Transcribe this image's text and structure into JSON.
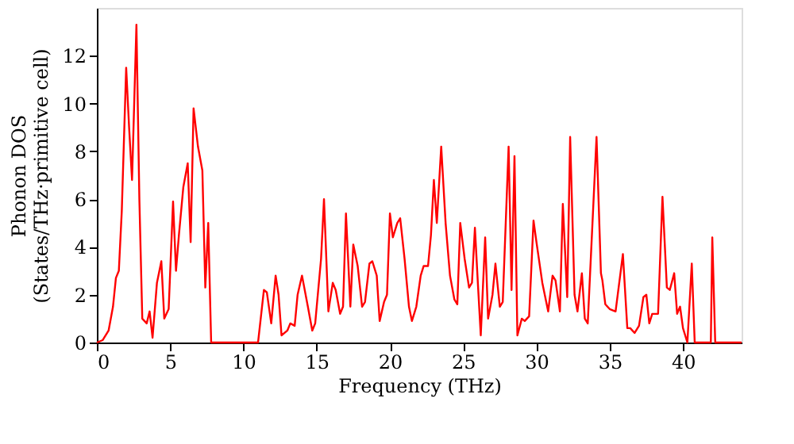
{
  "chart_data": {
    "type": "line",
    "xlabel": "Frequency (THz)",
    "ylabel": "Phonon DOS\n(States/THz·primitive cell)",
    "x": [
      0,
      0.4,
      0.8,
      1.1,
      1.3,
      1.5,
      1.7,
      2.0,
      2.2,
      2.4,
      2.7,
      2.9,
      3.1,
      3.4,
      3.6,
      3.8,
      4.1,
      4.4,
      4.6,
      4.9,
      5.2,
      5.4,
      5.6,
      5.9,
      6.2,
      6.4,
      6.6,
      6.9,
      7.2,
      7.4,
      7.6,
      7.8,
      11.0,
      11.4,
      11.6,
      11.9,
      12.2,
      12.4,
      12.6,
      13.0,
      13.2,
      13.5,
      13.7,
      14.0,
      14.4,
      14.7,
      14.9,
      15.3,
      15.5,
      15.8,
      16.1,
      16.3,
      16.6,
      16.8,
      17.0,
      17.3,
      17.5,
      17.8,
      18.1,
      18.3,
      18.6,
      18.8,
      19.1,
      19.3,
      19.6,
      19.8,
      20.0,
      20.2,
      20.5,
      20.7,
      21.0,
      21.3,
      21.5,
      21.8,
      22.1,
      22.3,
      22.6,
      22.8,
      23.0,
      23.2,
      23.5,
      23.8,
      24.1,
      24.4,
      24.6,
      24.8,
      25.1,
      25.4,
      25.6,
      25.8,
      26.0,
      26.2,
      26.5,
      26.7,
      27.0,
      27.2,
      27.5,
      27.7,
      28.1,
      28.3,
      28.5,
      28.7,
      29.0,
      29.2,
      29.5,
      29.8,
      30.0,
      30.4,
      30.8,
      31.1,
      31.3,
      31.6,
      31.8,
      32.1,
      32.3,
      32.6,
      32.8,
      33.1,
      33.3,
      33.5,
      34.1,
      34.4,
      34.5,
      34.7,
      35.0,
      35.4,
      35.9,
      36.2,
      36.4,
      36.7,
      37.0,
      37.3,
      37.5,
      37.7,
      37.9,
      38.3,
      38.6,
      38.9,
      39.1,
      39.4,
      39.6,
      39.8,
      40.0,
      40.3,
      40.6,
      40.8,
      41.9,
      42.0,
      42.2,
      44.0
    ],
    "series": [
      {
        "color": "#ff0000",
        "values": [
          0,
          0.1,
          0.5,
          1.5,
          2.7,
          3.0,
          5.5,
          11.5,
          9.0,
          6.8,
          13.3,
          6.0,
          1.0,
          0.8,
          1.3,
          0.2,
          2.5,
          3.4,
          1.0,
          1.4,
          5.9,
          3.0,
          4.5,
          6.5,
          7.5,
          4.2,
          9.8,
          8.2,
          7.2,
          2.3,
          5.0,
          0,
          0,
          2.2,
          2.1,
          0.8,
          2.8,
          2.0,
          0.3,
          0.5,
          0.8,
          0.7,
          2.0,
          2.8,
          1.5,
          0.5,
          0.8,
          3.5,
          6.0,
          1.3,
          2.5,
          2.2,
          1.2,
          1.5,
          5.4,
          1.5,
          4.1,
          3.2,
          1.5,
          1.7,
          3.3,
          3.4,
          2.8,
          0.9,
          1.7,
          2.0,
          5.4,
          4.4,
          5.0,
          5.2,
          3.5,
          1.5,
          0.9,
          1.5,
          2.8,
          3.2,
          3.2,
          4.5,
          6.8,
          5.0,
          8.2,
          5.0,
          2.8,
          1.8,
          1.6,
          5.0,
          3.5,
          2.3,
          2.5,
          4.8,
          2.5,
          0.3,
          4.4,
          1.0,
          2.0,
          3.3,
          1.5,
          1.7,
          8.2,
          2.2,
          7.8,
          0.3,
          1.0,
          0.9,
          1.1,
          5.1,
          4.2,
          2.5,
          1.3,
          2.8,
          2.6,
          1.3,
          5.8,
          1.9,
          8.6,
          2.0,
          1.3,
          2.9,
          1.0,
          0.8,
          8.6,
          2.9,
          2.6,
          1.6,
          1.4,
          1.3,
          3.7,
          0.6,
          0.6,
          0.4,
          0.7,
          1.9,
          2.0,
          0.8,
          1.2,
          1.2,
          6.1,
          2.3,
          2.2,
          2.9,
          1.2,
          1.5,
          0.6,
          0,
          3.3,
          0,
          0,
          4.4,
          0,
          0
        ]
      }
    ],
    "xlim": [
      0,
      44
    ],
    "ylim": [
      0,
      14
    ],
    "xticks": [
      0,
      5,
      10,
      15,
      20,
      25,
      30,
      35,
      40
    ],
    "yticks": [
      0,
      2,
      4,
      6,
      8,
      10,
      12
    ],
    "grid": false,
    "line_style": "solid",
    "marker": "none"
  }
}
